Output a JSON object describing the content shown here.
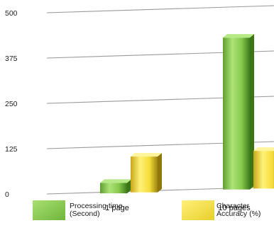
{
  "chart_data": {
    "type": "bar",
    "title": "",
    "xlabel": "",
    "ylabel": "",
    "ylim": [
      0,
      500
    ],
    "yticks": [
      "0",
      "125",
      "250",
      "375",
      "500"
    ],
    "categories": [
      "1 page",
      "10 pages"
    ],
    "series": [
      {
        "name_lines": [
          "Processing time",
          "(Second)"
        ],
        "values": [
          25,
          415
        ],
        "color": "#8ed04f"
      },
      {
        "name_lines": [
          "Character",
          "Accuracy (%)"
        ],
        "values": [
          95,
          100
        ],
        "color": "#f3de3c"
      }
    ],
    "legend_position": "bottom",
    "grid": true,
    "style": "3d-cylinder"
  }
}
